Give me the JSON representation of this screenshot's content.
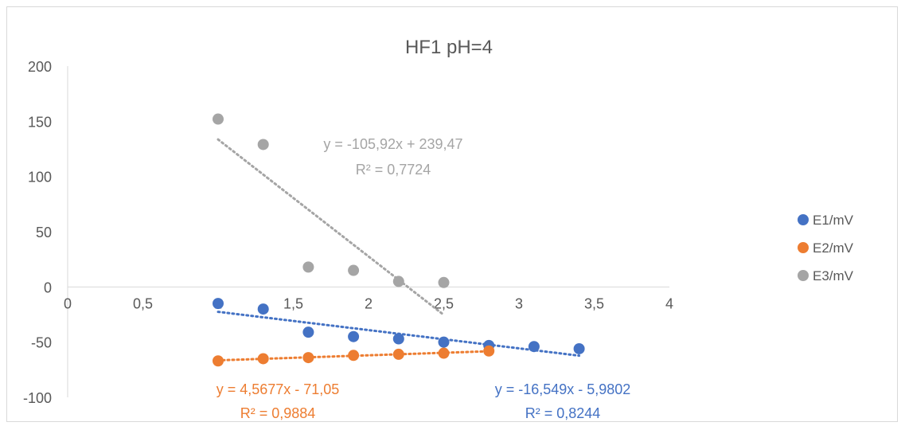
{
  "chart_data": {
    "type": "scatter",
    "title": "HF1 pH=4",
    "xlim": [
      0,
      4
    ],
    "ylim": [
      -100,
      200
    ],
    "x_ticks": [
      0,
      0.5,
      1,
      1.5,
      2,
      2.5,
      3,
      3.5,
      4
    ],
    "x_tick_labels": [
      "0",
      "0,5",
      "1",
      "1,5",
      "2",
      "2,5",
      "3",
      "3,5",
      "4"
    ],
    "y_ticks": [
      -100,
      -50,
      0,
      50,
      100,
      150,
      200
    ],
    "y_tick_labels": [
      "-100",
      "-50",
      "0",
      "50",
      "100",
      "150",
      "200"
    ],
    "grid": false,
    "legend_position": "right",
    "series": [
      {
        "name": "E1/mV",
        "color": "#4472C4",
        "points": [
          [
            1.0,
            -15
          ],
          [
            1.3,
            -20
          ],
          [
            1.6,
            -41
          ],
          [
            1.9,
            -45
          ],
          [
            2.2,
            -47
          ],
          [
            2.5,
            -50
          ],
          [
            2.8,
            -53
          ],
          [
            3.1,
            -54
          ],
          [
            3.4,
            -56
          ]
        ],
        "trendline": {
          "slope": -16.549,
          "intercept": -5.9802,
          "x_range": [
            1.0,
            3.4
          ],
          "equation": "y = -16,549x - 5,9802",
          "r2": "R² = 0,8244"
        }
      },
      {
        "name": "E2/mV",
        "color": "#ED7D31",
        "points": [
          [
            1.0,
            -67
          ],
          [
            1.3,
            -65
          ],
          [
            1.6,
            -64
          ],
          [
            1.9,
            -62
          ],
          [
            2.2,
            -61
          ],
          [
            2.5,
            -60
          ],
          [
            2.8,
            -58
          ]
        ],
        "trendline": {
          "slope": 4.5677,
          "intercept": -71.05,
          "x_range": [
            1.0,
            2.8
          ],
          "equation": "y = 4,5677x - 71,05",
          "r2": "R² = 0,9884"
        }
      },
      {
        "name": "E3/mV",
        "color": "#A5A5A5",
        "points": [
          [
            1.0,
            152
          ],
          [
            1.3,
            129
          ],
          [
            1.6,
            18
          ],
          [
            1.9,
            15
          ],
          [
            2.2,
            5
          ],
          [
            2.5,
            4
          ]
        ],
        "trendline": {
          "slope": -105.92,
          "intercept": 239.47,
          "x_range": [
            1.0,
            2.5
          ],
          "equation": "y = -105,92x + 239,47",
          "r2": "R² = 0,7724"
        }
      }
    ]
  }
}
